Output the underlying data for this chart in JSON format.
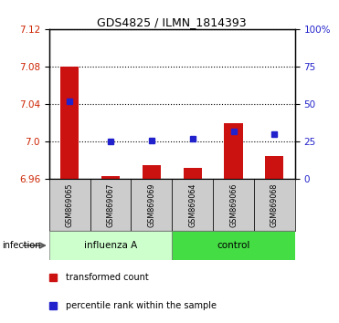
{
  "title": "GDS4825 / ILMN_1814393",
  "samples": [
    "GSM869065",
    "GSM869067",
    "GSM869069",
    "GSM869064",
    "GSM869066",
    "GSM869068"
  ],
  "transformed_count": [
    7.08,
    6.963,
    6.975,
    6.972,
    7.02,
    6.985
  ],
  "percentile_rank": [
    52,
    25,
    26,
    27,
    32,
    30
  ],
  "ylim_left": [
    6.96,
    7.12
  ],
  "ylim_right": [
    0,
    100
  ],
  "yticks_left": [
    6.96,
    7.0,
    7.04,
    7.08,
    7.12
  ],
  "yticks_right": [
    0,
    25,
    50,
    75,
    100
  ],
  "bar_color": "#cc1111",
  "dot_color": "#2222cc",
  "base_value": 6.96,
  "influenza_color": "#ccffcc",
  "control_color": "#44dd44",
  "sample_box_color": "#cccccc",
  "legend_bar_label": "transformed count",
  "legend_dot_label": "percentile rank within the sample",
  "infection_label": "infection",
  "influenza_label": "influenza A",
  "control_label": "control",
  "left_ytick_color": "#cc2200",
  "right_ytick_color": "#2222cc"
}
